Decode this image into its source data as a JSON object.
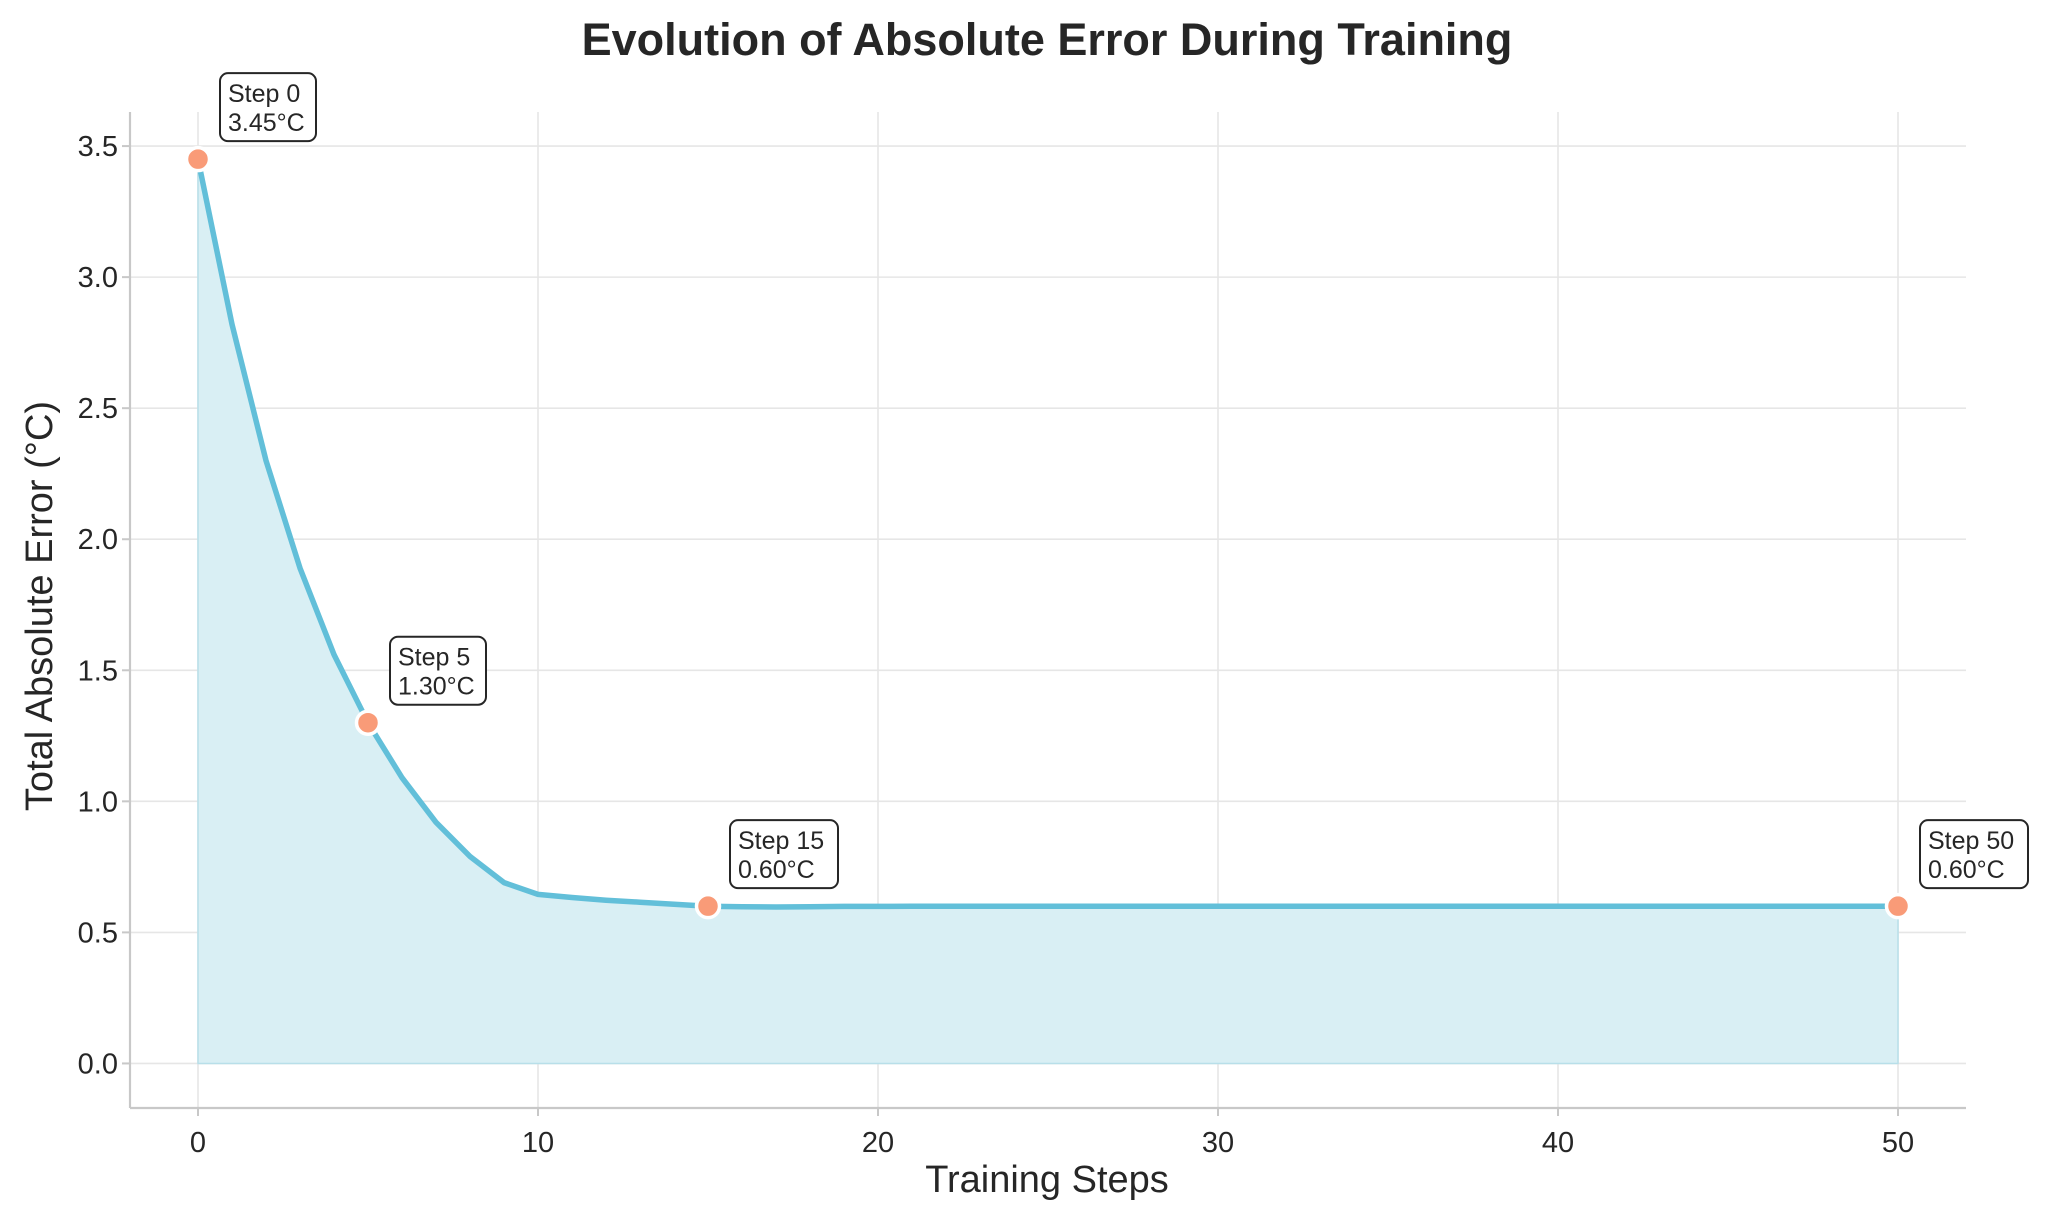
{
  "chart_data": {
    "type": "area",
    "title": "Evolution of Absolute Error During Training",
    "xlabel": "Training Steps",
    "ylabel": "Total Absolute Error (°C)",
    "xlim": [
      -2,
      52
    ],
    "ylim": [
      -0.17,
      3.63
    ],
    "xticks": [
      0,
      10,
      20,
      30,
      40,
      50
    ],
    "yticks": [
      0.0,
      0.5,
      1.0,
      1.5,
      2.0,
      2.5,
      3.0,
      3.5
    ],
    "grid": true,
    "series": [
      {
        "x": [
          0,
          1,
          2,
          3,
          4,
          5,
          6,
          7,
          8,
          9,
          10,
          11,
          12,
          13,
          14,
          15,
          16,
          17,
          18,
          19,
          20,
          21,
          22,
          23,
          24,
          25,
          26,
          27,
          28,
          29,
          30,
          31,
          32,
          33,
          34,
          35,
          36,
          37,
          38,
          39,
          40,
          41,
          42,
          43,
          44,
          45,
          46,
          47,
          48,
          49,
          50
        ],
        "y": [
          3.45,
          2.82,
          2.3,
          1.89,
          1.56,
          1.3,
          1.09,
          0.92,
          0.79,
          0.69,
          0.645,
          0.633,
          0.623,
          0.615,
          0.607,
          0.6,
          0.598,
          0.597,
          0.598,
          0.599,
          0.599,
          0.6,
          0.6,
          0.6,
          0.6,
          0.6,
          0.6,
          0.6,
          0.6,
          0.6,
          0.6,
          0.6,
          0.6,
          0.6,
          0.6,
          0.6,
          0.6,
          0.6,
          0.6,
          0.6,
          0.6,
          0.6,
          0.6,
          0.6,
          0.6,
          0.6,
          0.6,
          0.6,
          0.6,
          0.6,
          0.6
        ],
        "line_color": "#62bfd9",
        "fill_color": "#d9eff4"
      }
    ],
    "highlights": [
      {
        "x": 0,
        "y": 3.45,
        "label_step": "Step 0",
        "label_value": "3.45°C"
      },
      {
        "x": 5,
        "y": 1.3,
        "label_step": "Step 5",
        "label_value": "1.30°C"
      },
      {
        "x": 15,
        "y": 0.6,
        "label_step": "Step 15",
        "label_value": "0.60°C"
      },
      {
        "x": 50,
        "y": 0.6,
        "label_step": "Step 50",
        "label_value": "0.60°C"
      }
    ],
    "highlight_color": "#f99b78"
  }
}
